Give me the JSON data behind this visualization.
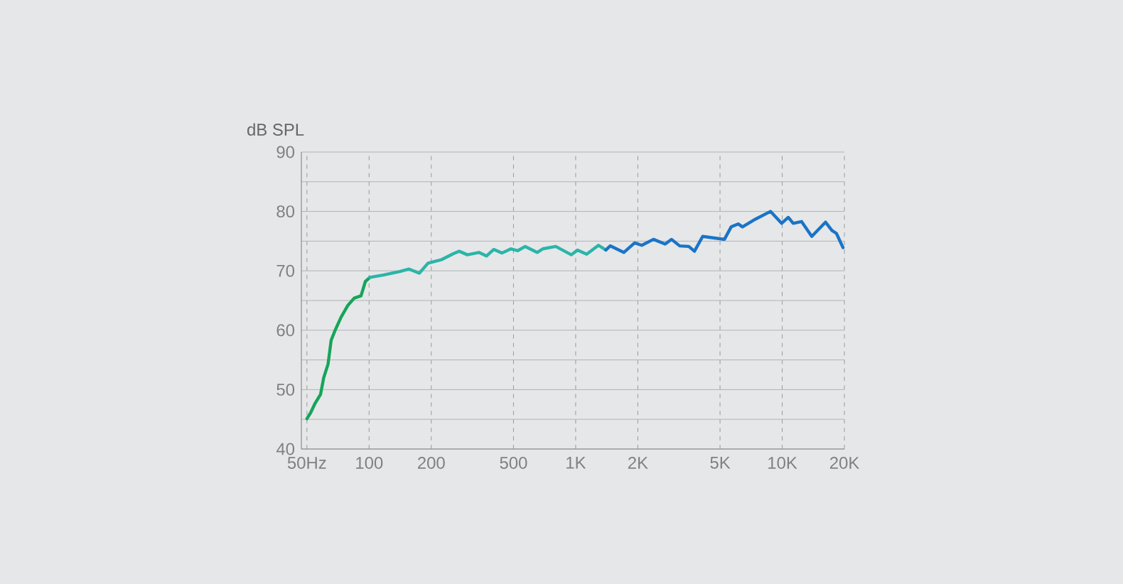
{
  "chart_data": {
    "type": "line",
    "ylabel": "dB SPL",
    "log": "x",
    "xlim": [
      47,
      20000
    ],
    "ylim": [
      40,
      90
    ],
    "xticks": [
      {
        "value": 50,
        "label": "50Hz"
      },
      100,
      200,
      500,
      {
        "value": 1000,
        "label": "1K"
      },
      {
        "value": 2000,
        "label": "2K"
      },
      {
        "value": 5000,
        "label": "5K"
      },
      {
        "value": 10000,
        "label": "10K"
      },
      {
        "value": 20000,
        "label": "20K"
      }
    ],
    "yticks": [
      40,
      {
        "value": 45,
        "label": null
      },
      50,
      {
        "value": 55,
        "label": null
      },
      60,
      {
        "value": 65,
        "label": null
      },
      70,
      {
        "value": 75,
        "label": null
      },
      80,
      {
        "value": 85,
        "label": null
      },
      90
    ],
    "grid": true,
    "series": [
      {
        "color": "#16a55a",
        "x": [
          50,
          52.1,
          54.6,
          58.2,
          60.3,
          63.3,
          65.5,
          68.3,
          73.2,
          79,
          84.7,
          91.4,
          95.9,
          101
        ],
        "values": [
          45.1,
          46.1,
          47.6,
          49.2,
          52.0,
          54.3,
          58.3,
          59.9,
          62.2,
          64.2,
          65.4,
          65.8,
          68.2,
          68.9
        ]
      },
      {
        "color": "#2bb5a8",
        "x": [
          101,
          117,
          141,
          156,
          175,
          193,
          225,
          256,
          273,
          299,
          340,
          370,
          401,
          440,
          486,
          525,
          570,
          651,
          693,
          801,
          953,
          1020,
          1130,
          1290,
          1400
        ],
        "values": [
          68.9,
          69.3,
          69.9,
          70.3,
          69.6,
          71.3,
          71.9,
          72.9,
          73.3,
          72.7,
          73.1,
          72.5,
          73.6,
          73.0,
          73.7,
          73.4,
          74.1,
          73.1,
          73.7,
          74.1,
          72.7,
          73.5,
          72.8,
          74.3,
          73.5
        ]
      },
      {
        "color": "#1a74c6",
        "x": [
          1400,
          1470,
          1710,
          1930,
          2090,
          2380,
          2710,
          2910,
          3190,
          3530,
          3760,
          4120,
          5250,
          5660,
          6120,
          6420,
          7420,
          8770,
          9930,
          10700,
          11300,
          12400,
          13900,
          16200,
          17400,
          18300,
          19700
        ],
        "values": [
          73.5,
          74.2,
          73.1,
          74.7,
          74.3,
          75.3,
          74.5,
          75.3,
          74.2,
          74.1,
          73.3,
          75.8,
          75.3,
          77.4,
          77.9,
          77.4,
          78.7,
          80.0,
          78.0,
          79.0,
          78.0,
          78.3,
          75.8,
          78.2,
          76.8,
          76.3,
          73.9
        ]
      }
    ]
  }
}
